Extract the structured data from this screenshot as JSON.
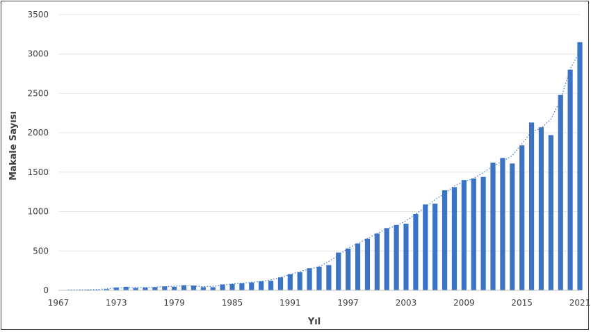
{
  "chart_data": {
    "type": "bar",
    "title": "",
    "xlabel": "Yıl",
    "ylabel": "Makale Sayısı",
    "ylim": [
      0,
      3500
    ],
    "y_ticks": [
      "0",
      "500",
      "1000",
      "1500",
      "2000",
      "2500",
      "3000",
      "3500"
    ],
    "x_tick_labels": [
      "1967",
      "1973",
      "1979",
      "1985",
      "1991",
      "1997",
      "2003",
      "2009",
      "2015",
      "2021"
    ],
    "grid": "horizontal",
    "legend": "none",
    "bar_color": "#3B74C4",
    "trendline": "dotted polynomial",
    "categories": [
      1968,
      1969,
      1970,
      1971,
      1972,
      1973,
      1974,
      1975,
      1976,
      1977,
      1978,
      1979,
      1980,
      1981,
      1982,
      1983,
      1984,
      1985,
      1986,
      1987,
      1988,
      1989,
      1990,
      1991,
      1992,
      1993,
      1994,
      1995,
      1996,
      1997,
      1998,
      1999,
      2000,
      2001,
      2002,
      2003,
      2004,
      2005,
      2006,
      2007,
      2008,
      2009,
      2010,
      2011,
      2012,
      2013,
      2014,
      2015,
      2016,
      2017,
      2018,
      2019,
      2020,
      2021
    ],
    "values": [
      5,
      5,
      8,
      8,
      15,
      35,
      45,
      30,
      35,
      40,
      50,
      45,
      65,
      60,
      40,
      40,
      75,
      80,
      90,
      100,
      115,
      120,
      165,
      205,
      230,
      280,
      300,
      320,
      480,
      530,
      595,
      655,
      720,
      790,
      830,
      845,
      970,
      1090,
      1100,
      1270,
      1310,
      1400,
      1420,
      1440,
      1620,
      1680,
      1610,
      1840,
      2130,
      2070,
      1970,
      2480,
      2800,
      3150
    ]
  }
}
